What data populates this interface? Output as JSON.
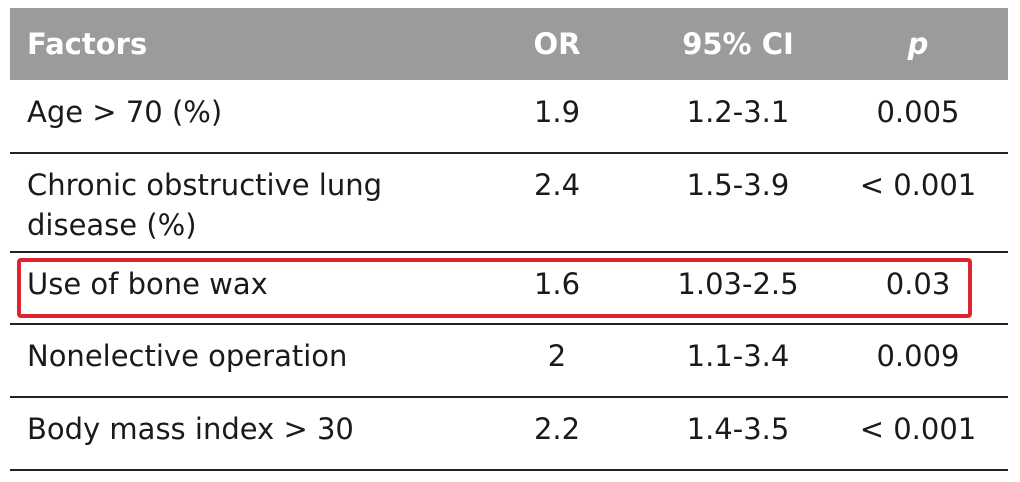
{
  "table": {
    "header": [
      "Factors",
      "OR",
      "95% CI",
      "p"
    ],
    "rows": [
      [
        "Age > 70 (%)",
        "1.9",
        "1.2-3.1",
        "0.005"
      ],
      [
        "Chronic obstructive lung disease (%)",
        "2.4",
        "1.5-3.9",
        "< 0.001"
      ],
      [
        "Use of bone wax",
        "1.6",
        "1.03-2.5",
        "0.03"
      ],
      [
        "Nonelective operation",
        "2",
        "1.1-3.4",
        "0.009"
      ],
      [
        "Body mass index > 30",
        "2.2",
        "1.4-3.5",
        "< 0.001"
      ]
    ],
    "highlighted_row": 2
  }
}
